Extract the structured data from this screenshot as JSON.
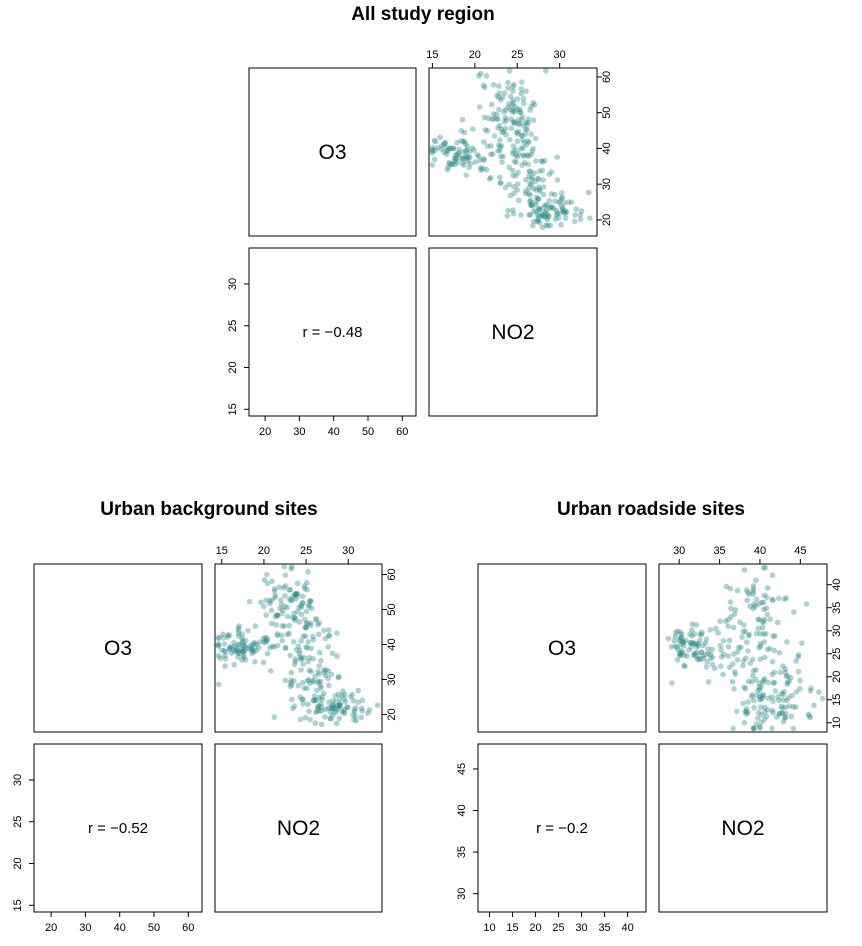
{
  "chart_data": [
    {
      "type": "scatter",
      "title": "All study region",
      "variables": [
        "O3",
        "NO2"
      ],
      "correlation_text": "r = −0.48",
      "x_ticks": [
        15,
        20,
        25,
        30
      ],
      "y_ticks": [
        20,
        30,
        40,
        50,
        60
      ],
      "xlim": [
        14.6,
        34.4
      ],
      "ylim": [
        15.5,
        62.5
      ],
      "lower_x_ticks": [
        20,
        30,
        40,
        50,
        60
      ],
      "lower_y_ticks": [
        15,
        20,
        25,
        30
      ],
      "lower_xlim": [
        15.3,
        64
      ],
      "lower_ylim": [
        14.2,
        34.3
      ],
      "point_color": "#2a8a86",
      "clusters": [
        {
          "x": 17.5,
          "y": 39,
          "sx": 1.5,
          "sy": 2.6,
          "n": 70
        },
        {
          "x": 21.5,
          "y": 38,
          "sx": 1.8,
          "sy": 3.5,
          "n": 30
        },
        {
          "x": 23.5,
          "y": 52,
          "sx": 1.8,
          "sy": 4.5,
          "n": 75
        },
        {
          "x": 25.5,
          "y": 42,
          "sx": 1.4,
          "sy": 5,
          "n": 50
        },
        {
          "x": 26.5,
          "y": 30,
          "sx": 1.8,
          "sy": 4,
          "n": 60
        },
        {
          "x": 29,
          "y": 22.5,
          "sx": 2.2,
          "sy": 2.2,
          "n": 80
        }
      ]
    },
    {
      "type": "scatter",
      "title": "Urban background sites",
      "variables": [
        "O3",
        "NO2"
      ],
      "correlation_text": "r = −0.52",
      "x_ticks": [
        15,
        20,
        25,
        30
      ],
      "y_ticks": [
        20,
        30,
        40,
        50,
        60
      ],
      "xlim": [
        14.2,
        34
      ],
      "ylim": [
        15,
        63
      ],
      "lower_x_ticks": [
        20,
        30,
        40,
        50,
        60
      ],
      "lower_y_ticks": [
        15,
        20,
        25,
        30
      ],
      "lower_xlim": [
        15,
        64
      ],
      "lower_ylim": [
        14.2,
        34.3
      ],
      "point_color": "#2a8a86",
      "clusters": [
        {
          "x": 16.5,
          "y": 39,
          "sx": 1.5,
          "sy": 2.6,
          "n": 70
        },
        {
          "x": 20.5,
          "y": 38,
          "sx": 1.8,
          "sy": 3.5,
          "n": 30
        },
        {
          "x": 22.5,
          "y": 52,
          "sx": 1.8,
          "sy": 4.5,
          "n": 75
        },
        {
          "x": 24.8,
          "y": 42,
          "sx": 1.4,
          "sy": 5,
          "n": 50
        },
        {
          "x": 25.8,
          "y": 30,
          "sx": 1.8,
          "sy": 4,
          "n": 60
        },
        {
          "x": 28.5,
          "y": 22,
          "sx": 2.2,
          "sy": 2.2,
          "n": 80
        }
      ]
    },
    {
      "type": "scatter",
      "title": "Urban roadside sites",
      "variables": [
        "O3",
        "NO2"
      ],
      "correlation_text": "r = −0.2",
      "x_ticks": [
        30,
        35,
        40,
        45
      ],
      "y_ticks": [
        10,
        15,
        20,
        25,
        30,
        35,
        40
      ],
      "xlim": [
        27.5,
        48.3
      ],
      "ylim": [
        8,
        44.5
      ],
      "lower_x_ticks": [
        10,
        15,
        20,
        25,
        30,
        35,
        40
      ],
      "lower_y_ticks": [
        30,
        35,
        40,
        45
      ],
      "lower_xlim": [
        7.5,
        44
      ],
      "lower_ylim": [
        27.8,
        48
      ],
      "point_color": "#2a8a86",
      "clusters": [
        {
          "x": 31.5,
          "y": 27,
          "sx": 1.6,
          "sy": 2.4,
          "n": 70
        },
        {
          "x": 35.5,
          "y": 25,
          "sx": 2,
          "sy": 3.5,
          "n": 35
        },
        {
          "x": 39.5,
          "y": 36,
          "sx": 2,
          "sy": 4,
          "n": 60
        },
        {
          "x": 40.5,
          "y": 22,
          "sx": 2.2,
          "sy": 4.5,
          "n": 60
        },
        {
          "x": 41.5,
          "y": 14,
          "sx": 2.5,
          "sy": 3,
          "n": 85
        }
      ]
    }
  ]
}
